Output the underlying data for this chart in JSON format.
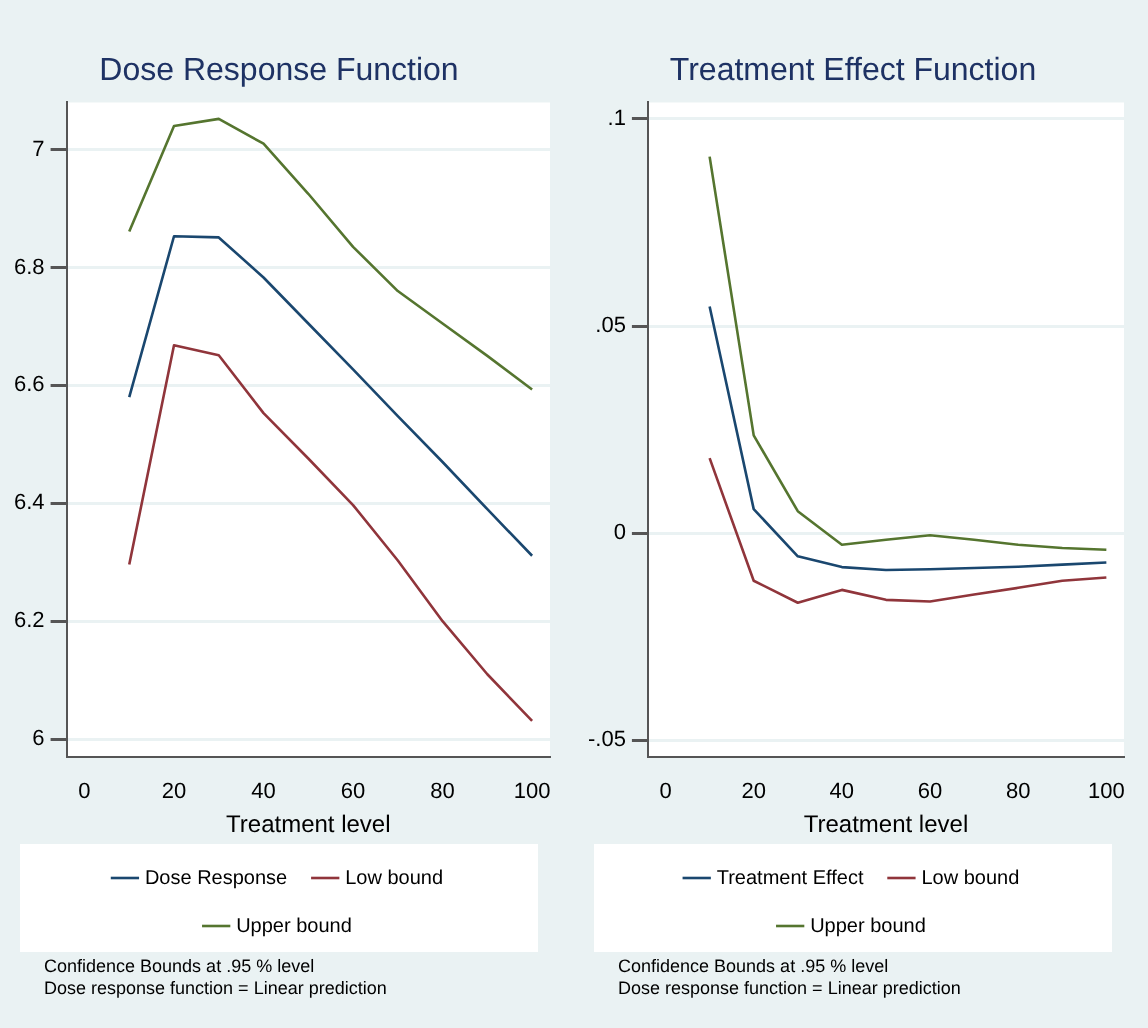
{
  "chart_data": [
    {
      "type": "line",
      "title": "Dose Response Function",
      "xlabel": "Treatment level",
      "x": [
        10,
        20,
        30,
        40,
        50,
        60,
        70,
        80,
        90,
        100
      ],
      "series": [
        {
          "name": "Dose Response",
          "color": "#1a476f",
          "values": [
            6.58,
            6.853,
            6.851,
            6.783,
            6.705,
            6.627,
            6.548,
            6.47,
            6.39,
            6.311
          ]
        },
        {
          "name": "Low bound",
          "color": "#90353b",
          "values": [
            6.296,
            6.668,
            6.651,
            6.553,
            6.476,
            6.397,
            6.303,
            6.2,
            6.11,
            6.031
          ]
        },
        {
          "name": "Upper bound",
          "color": "#55752f",
          "values": [
            6.861,
            7.04,
            7.052,
            7.01,
            6.925,
            6.835,
            6.76,
            6.705,
            6.65,
            6.593
          ]
        }
      ],
      "xlim": [
        -4,
        104
      ],
      "xticks": [
        0,
        20,
        40,
        60,
        80,
        100
      ],
      "ylim": [
        5.97,
        7.08
      ],
      "yticks": [
        6,
        6.2,
        6.4,
        6.6,
        6.8,
        7
      ],
      "grid": "y",
      "legend": "bottom",
      "marker": "none",
      "annotations": [
        "Confidence Bounds at .95 % level",
        "Dose response function = Linear prediction"
      ]
    },
    {
      "type": "line",
      "title": "Treatment Effect Function",
      "xlabel": "Treatment level",
      "x": [
        10,
        20,
        30,
        40,
        50,
        60,
        70,
        80,
        90,
        100
      ],
      "series": [
        {
          "name": "Treatment Effect",
          "color": "#1a476f",
          "values": [
            0.0547,
            0.0058,
            -0.0056,
            -0.0082,
            -0.0089,
            -0.0087,
            -0.0084,
            -0.0081,
            -0.0076,
            -0.0071
          ]
        },
        {
          "name": "Low bound",
          "color": "#90353b",
          "values": [
            0.0181,
            -0.0115,
            -0.0168,
            -0.0137,
            -0.0161,
            -0.0165,
            -0.0148,
            -0.0132,
            -0.0115,
            -0.0107
          ]
        },
        {
          "name": "Upper bound",
          "color": "#55752f",
          "values": [
            0.0909,
            0.0236,
            0.0053,
            -0.0028,
            -0.0016,
            -0.0005,
            -0.0016,
            -0.0028,
            -0.0036,
            -0.004
          ]
        }
      ],
      "xlim": [
        -4,
        104
      ],
      "xticks": [
        0,
        20,
        40,
        60,
        80,
        100
      ],
      "ylim": [
        -0.054,
        0.104
      ],
      "yticks": [
        {
          "value": -0.05,
          "label": "-.05"
        },
        {
          "value": 0,
          "label": "0"
        },
        {
          "value": 0.05,
          "label": ".05"
        },
        {
          "value": 0.1,
          "label": ".1"
        }
      ],
      "grid": "y",
      "legend": "bottom",
      "marker": "none",
      "annotations": [
        "Confidence Bounds at .95 % level",
        "Dose response function = Linear prediction"
      ]
    }
  ]
}
